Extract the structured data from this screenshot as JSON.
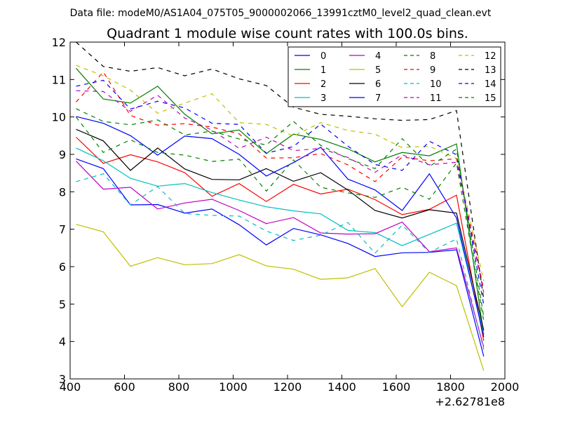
{
  "chart_data": {
    "type": "line",
    "suptitle": "Data file: modeM0/AS1A04_075T05_9000002066_13991cztM0_level2_quad_clean.evt",
    "title": "Quadrant 1 module wise count rates with 100.0s bins.",
    "xlabel": "",
    "ylabel": "",
    "x_offset_label": "+2.62781e8",
    "xlim": [
      400,
      2000
    ],
    "ylim": [
      3,
      12
    ],
    "xticks": [
      400,
      600,
      800,
      1000,
      1200,
      1400,
      1600,
      1800,
      2000
    ],
    "yticks": [
      3,
      4,
      5,
      6,
      7,
      8,
      9,
      10,
      11,
      12
    ],
    "x": [
      422,
      522,
      622,
      722,
      822,
      922,
      1022,
      1122,
      1222,
      1322,
      1422,
      1522,
      1622,
      1722,
      1822,
      1922
    ],
    "legend_location": "top-right",
    "legend_columns": 4,
    "series": [
      {
        "name": "0",
        "color": "#0000ff",
        "dash": "solid",
        "values": [
          8.88,
          8.62,
          7.65,
          7.66,
          7.43,
          7.54,
          7.12,
          6.58,
          7.02,
          6.85,
          6.62,
          6.27,
          6.37,
          6.38,
          6.45,
          3.6
        ]
      },
      {
        "name": "1",
        "color": "#008000",
        "dash": "solid",
        "values": [
          11.3,
          10.48,
          10.37,
          10.82,
          10.07,
          9.55,
          9.65,
          9.02,
          9.54,
          9.4,
          9.15,
          8.8,
          9.05,
          8.96,
          9.28,
          4.18
        ]
      },
      {
        "name": "2",
        "color": "#ff0000",
        "dash": "solid",
        "values": [
          9.46,
          8.76,
          8.99,
          8.8,
          8.51,
          7.88,
          8.22,
          7.74,
          8.2,
          7.94,
          8.07,
          7.79,
          7.39,
          7.53,
          7.91,
          4.02
        ]
      },
      {
        "name": "3",
        "color": "#00bfbf",
        "dash": "solid",
        "values": [
          9.17,
          8.83,
          8.36,
          8.15,
          8.22,
          7.98,
          7.78,
          7.6,
          7.49,
          7.41,
          6.97,
          6.91,
          6.56,
          6.86,
          7.16,
          4.2
        ]
      },
      {
        "name": "4",
        "color": "#bf00bf",
        "dash": "solid",
        "values": [
          8.82,
          8.07,
          8.12,
          7.54,
          7.7,
          7.8,
          7.5,
          7.15,
          7.31,
          6.9,
          6.87,
          6.88,
          7.19,
          6.4,
          6.5,
          3.85
        ]
      },
      {
        "name": "5",
        "color": "#bfbf00",
        "dash": "solid",
        "values": [
          7.13,
          6.93,
          6.01,
          6.24,
          6.05,
          6.08,
          6.32,
          6.02,
          5.93,
          5.66,
          5.7,
          5.95,
          4.93,
          5.85,
          5.49,
          3.22
        ]
      },
      {
        "name": "6",
        "color": "#000000",
        "dash": "solid",
        "values": [
          9.67,
          9.36,
          8.57,
          9.17,
          8.61,
          8.33,
          8.32,
          8.62,
          8.28,
          8.51,
          8.05,
          7.5,
          7.3,
          7.52,
          7.43,
          4.3
        ]
      },
      {
        "name": "7",
        "color": "#0000ff",
        "dash": "solid",
        "values": [
          10.01,
          9.83,
          9.5,
          8.98,
          9.49,
          9.42,
          9.0,
          8.42,
          8.78,
          9.19,
          8.34,
          8.05,
          7.5,
          8.48,
          7.3,
          4.12
        ]
      },
      {
        "name": "8",
        "color": "#008000",
        "dash": "dashed",
        "values": [
          10.0,
          9.05,
          9.39,
          9.05,
          8.98,
          8.81,
          8.87,
          8.02,
          8.85,
          8.12,
          7.97,
          7.85,
          8.12,
          7.8,
          8.77,
          4.55
        ]
      },
      {
        "name": "9",
        "color": "#ff0000",
        "dash": "dashed",
        "values": [
          10.4,
          11.2,
          10.04,
          9.78,
          9.82,
          9.73,
          9.55,
          8.9,
          8.91,
          9.02,
          8.72,
          8.27,
          8.93,
          8.83,
          8.88,
          5.38
        ]
      },
      {
        "name": "10",
        "color": "#00bfbf",
        "dash": "dashed",
        "values": [
          8.27,
          8.48,
          7.65,
          8.14,
          7.42,
          7.37,
          7.35,
          6.95,
          6.7,
          6.84,
          7.18,
          6.36,
          7.11,
          6.38,
          6.74,
          3.78
        ]
      },
      {
        "name": "11",
        "color": "#bf00bf",
        "dash": "dashed",
        "values": [
          10.7,
          10.68,
          10.15,
          10.58,
          9.97,
          9.65,
          9.16,
          9.46,
          9.1,
          9.16,
          8.92,
          8.52,
          8.99,
          8.72,
          8.79,
          5.31
        ]
      },
      {
        "name": "12",
        "color": "#bfbf00",
        "dash": "dashed",
        "values": [
          11.38,
          11.1,
          10.72,
          10.1,
          10.37,
          10.62,
          9.85,
          9.8,
          9.49,
          9.85,
          9.64,
          9.54,
          9.18,
          9.22,
          8.89,
          5.62
        ]
      },
      {
        "name": "13",
        "color": "#000000",
        "dash": "dashed",
        "values": [
          12.0,
          11.35,
          11.22,
          11.32,
          11.1,
          11.28,
          11.02,
          10.84,
          10.26,
          10.07,
          10.02,
          9.95,
          9.91,
          9.93,
          10.17,
          5.13
        ]
      },
      {
        "name": "14",
        "color": "#0000ff",
        "dash": "dashed",
        "values": [
          10.82,
          10.98,
          10.21,
          10.42,
          10.24,
          9.83,
          9.8,
          9.03,
          9.21,
          9.81,
          9.22,
          8.73,
          8.57,
          9.35,
          8.99,
          4.98
        ]
      },
      {
        "name": "15",
        "color": "#008000",
        "dash": "dashed",
        "values": [
          10.22,
          9.88,
          9.79,
          9.92,
          9.52,
          9.62,
          9.41,
          9.25,
          9.88,
          9.24,
          8.89,
          8.62,
          9.42,
          8.68,
          9.14,
          4.66
        ]
      }
    ]
  }
}
